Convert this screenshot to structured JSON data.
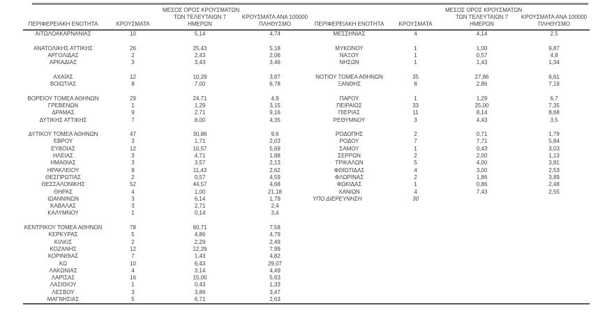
{
  "document": {
    "background": "#ffffff",
    "text_color": "#3d3d3d",
    "top_border_color": "#8c8c8c",
    "heavy_border_color": "#595959"
  },
  "header": {
    "region": "ΠΕΡΙΦΕΡΕΙΑΚΗ ΕΝΟΤΗΤΑ",
    "cases": "ΚΡΟΥΣΜΑΤΑ",
    "avg7_line1": "ΜΕΣΟΣ ΟΡΟΣ ΚΡΟΥΣΜΑΤΩΝ",
    "avg7_line2": "ΤΩΝ ΤΕΛΕΥΤΑΙΩΝ 7",
    "avg7_line3": "ΗΜΕΡΩΝ",
    "per100k_line1": "ΚΡΟΥΣΜΑΤΑ ΑΝΑ 100000",
    "per100k_line2": "ΠΛΗΘΥΣΜΟ"
  },
  "rows": [
    {
      "l": [
        "ΑΙΤΩΛΟΑΚΑΡΝΑΝΙΑΣ",
        "10",
        "5,14",
        "4,74"
      ],
      "r": [
        "ΜΕΣΣΗΝΙΑΣ",
        "4",
        "4,14",
        "2,5"
      ]
    },
    {
      "l": [
        "",
        "",
        "",
        ""
      ],
      "r": [
        "",
        "",
        "",
        ""
      ]
    },
    {
      "l": [
        "ΑΝΑΤΟΛΙΚΗΣ ΑΤΤΙΚΗΣ",
        "26",
        "25,43",
        "5,18"
      ],
      "r": [
        "ΜΥΚΟΝΟΥ",
        "1",
        "1,00",
        "9,87"
      ]
    },
    {
      "l": [
        "ΑΡΓΟΛΙΔΑΣ",
        "2",
        "2,43",
        "2,06"
      ],
      "r": [
        "ΝΑΞΟΥ",
        "1",
        "0,57",
        "4,8"
      ]
    },
    {
      "l": [
        "ΑΡΚΑΔΙΑΣ",
        "3",
        "3,43",
        "3,46"
      ],
      "r": [
        "ΝΗΣΩΝ",
        "1",
        "1,43",
        "1,34"
      ]
    },
    {
      "l": [
        "",
        "",
        "",
        ""
      ],
      "r": [
        "",
        "",
        "",
        ""
      ]
    },
    {
      "l": [
        "ΑΧΑΪΑΣ",
        "12",
        "10,29",
        "3,87"
      ],
      "r": [
        "ΝΟΤΙΟΥ ΤΟΜΕΑ ΑΘΗΝΩΝ",
        "35",
        "27,86",
        "6,61"
      ]
    },
    {
      "l": [
        "ΒΟΙΩΤΙΑΣ",
        "8",
        "7,00",
        "6,78"
      ],
      "r": [
        "ΞΑΝΘΗΣ",
        "8",
        "2,86",
        "7,19"
      ]
    },
    {
      "l": [
        "",
        "",
        "",
        ""
      ],
      "r": [
        "",
        "",
        "",
        ""
      ]
    },
    {
      "l": [
        "ΒΟΡΕΙΟΥ ΤΟΜΕΑ ΑΘΗΝΩΝ",
        "29",
        "24,71",
        "4,9"
      ],
      "r": [
        "ΠΑΡΟΥ",
        "1",
        "1,29",
        "6,7"
      ]
    },
    {
      "l": [
        "ΓΡΕΒΕΝΩΝ",
        "1",
        "1,29",
        "3,15"
      ],
      "r": [
        "ΠΕΙΡΑΙΩΣ",
        "33",
        "25,00",
        "7,35"
      ]
    },
    {
      "l": [
        "ΔΡΑΜΑΣ",
        "9",
        "2,71",
        "9,16"
      ],
      "r": [
        "ΠΙΕΡΙΑΣ",
        "11",
        "8,14",
        "8,68"
      ]
    },
    {
      "l": [
        "ΔΥΤΙΚΗΣ ΑΤΤΙΚΗΣ",
        "7",
        "8,00",
        "4,35"
      ],
      "r": [
        "ΡΕΘΥΜΝΟΥ",
        "3",
        "4,43",
        "3,5"
      ]
    },
    {
      "l": [
        "",
        "",
        "",
        ""
      ],
      "r": [
        "",
        "",
        "",
        ""
      ]
    },
    {
      "l": [
        "ΔΥΤΙΚΟΥ ΤΟΜΕΑ ΑΘΗΝΩΝ",
        "47",
        "30,86",
        "9,6"
      ],
      "r": [
        "ΡΟΔΟΠΗΣ",
        "2",
        "0,71",
        "1,79"
      ]
    },
    {
      "l": [
        "ΕΒΡΟΥ",
        "3",
        "1,71",
        "2,03"
      ],
      "r": [
        "ΡΟΔΟΥ",
        "7",
        "7,71",
        "5,84"
      ]
    },
    {
      "l": [
        "ΕΥΒΟΙΑΣ",
        "12",
        "10,57",
        "5,69"
      ],
      "r": [
        "ΣΑΜΟΥ",
        "1",
        "0,43",
        "3,03"
      ]
    },
    {
      "l": [
        "ΗΛΕΙΑΣ",
        "3",
        "4,71",
        "1,88"
      ],
      "r": [
        "ΣΕΡΡΩΝ",
        "2",
        "2,00",
        "1,13"
      ]
    },
    {
      "l": [
        "ΗΜΑΘΙΑΣ",
        "3",
        "3,57",
        "2,13"
      ],
      "r": [
        "ΤΡΙΚΑΛΩΝ",
        "5",
        "4,00",
        "3,81"
      ]
    },
    {
      "l": [
        "ΗΡΑΚΛΕΙΟΥ",
        "8",
        "11,43",
        "2,62"
      ],
      "r": [
        "ΦΘΙΩΤΙΔΑΣ",
        "4",
        "3,00",
        "2,53"
      ]
    },
    {
      "l": [
        "ΘΕΣΠΡΩΤΙΑΣ",
        "2",
        "0,57",
        "4,59"
      ],
      "r": [
        "ΦΛΩΡΙΝΑΣ",
        "2",
        "1,86",
        "3,89"
      ]
    },
    {
      "l": [
        "ΘΕΣΣΑΛΟΝΙΚΗΣ",
        "52",
        "44,57",
        "4,68"
      ],
      "r": [
        "ΦΩΚΙΔΑΣ",
        "1",
        "0,86",
        "2,48"
      ]
    },
    {
      "l": [
        "ΘΗΡΑΣ",
        "4",
        "1,00",
        "21,18"
      ],
      "r": [
        "ΧΑΝΙΩΝ",
        "4",
        "7,43",
        "2,55"
      ]
    },
    {
      "l": [
        "ΙΩΑΝΝΙΝΩΝ",
        "3",
        "6,14",
        "1,79"
      ],
      "r": [
        "ΥΠΟ ΔΙΕΡΕΥΝΗΣΗ",
        "30",
        "",
        ""
      ],
      "r_style": "investigation"
    },
    {
      "l": [
        "ΚΑΒΑΛΑΣ",
        "3",
        "2,71",
        "2,4"
      ],
      "r": [
        "",
        "",
        "",
        ""
      ]
    },
    {
      "l": [
        "ΚΑΛΥΜΝΟΥ",
        "1",
        "0,14",
        "3,4"
      ],
      "r": [
        "",
        "",
        "",
        ""
      ]
    },
    {
      "l": [
        "",
        "",
        "",
        ""
      ],
      "r": [
        "",
        "",
        "",
        ""
      ]
    },
    {
      "l": [
        "ΚΕΝΤΡΙΚΟΥ ΤΟΜΕΑ ΑΘΗΝΩΝ",
        "78",
        "60,71",
        "7,58"
      ],
      "r": [
        "",
        "",
        "",
        ""
      ]
    },
    {
      "l": [
        "ΚΕΡΚΥΡΑΣ",
        "5",
        "4,86",
        "4,79"
      ],
      "r": [
        "",
        "",
        "",
        ""
      ]
    },
    {
      "l": [
        "ΚΙΛΚΙΣ",
        "2",
        "2,29",
        "2,49"
      ],
      "r": [
        "",
        "",
        "",
        ""
      ]
    },
    {
      "l": [
        "ΚΟΖΑΝΗΣ",
        "12",
        "12,29",
        "7,99"
      ],
      "r": [
        "",
        "",
        "",
        ""
      ]
    },
    {
      "l": [
        "ΚΟΡΙΝΘΙΑΣ",
        "7",
        "1,43",
        "4,82"
      ],
      "r": [
        "",
        "",
        "",
        ""
      ]
    },
    {
      "l": [
        "ΚΩ",
        "10",
        "6,43",
        "29,07"
      ],
      "r": [
        "",
        "",
        "",
        ""
      ]
    },
    {
      "l": [
        "ΛΑΚΩΝΙΑΣ",
        "4",
        "3,14",
        "4,49"
      ],
      "r": [
        "",
        "",
        "",
        ""
      ]
    },
    {
      "l": [
        "ΛΑΡΙΣΑΣ",
        "16",
        "15,00",
        "5,63"
      ],
      "r": [
        "",
        "",
        "",
        ""
      ]
    },
    {
      "l": [
        "ΛΑΣΙΘΙΟΥ",
        "1",
        "0,43",
        "1,33"
      ],
      "r": [
        "",
        "",
        "",
        ""
      ]
    },
    {
      "l": [
        "ΛΕΣΒΟΥ",
        "3",
        "3,86",
        "3,47"
      ],
      "r": [
        "",
        "",
        "",
        ""
      ]
    },
    {
      "l": [
        "ΜΑΓΝΗΣΙΑΣ",
        "5",
        "6,71",
        "2,63"
      ],
      "r": [
        "",
        "",
        "",
        ""
      ]
    }
  ]
}
